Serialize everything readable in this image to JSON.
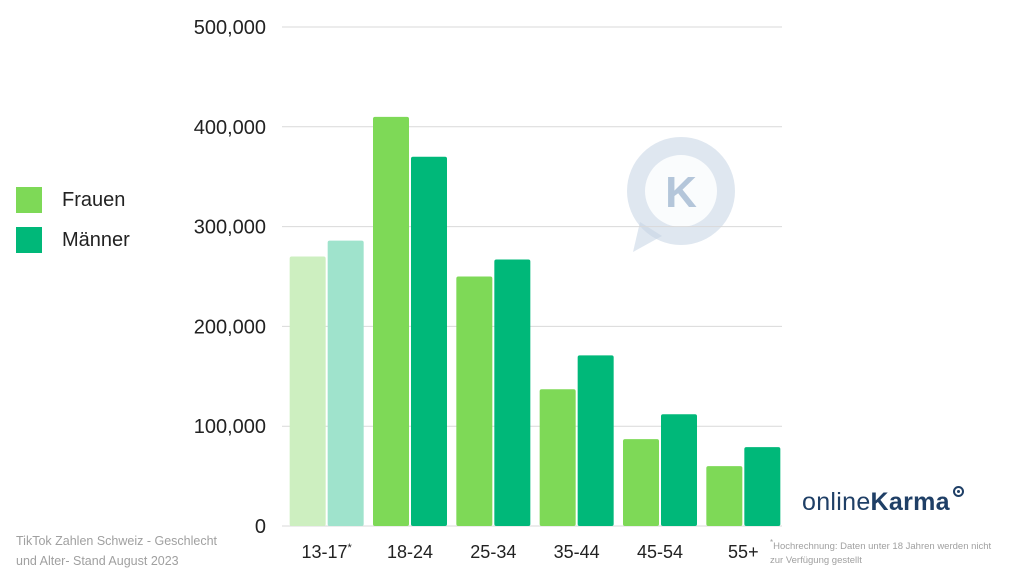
{
  "chart_data": {
    "type": "bar",
    "categories": [
      "13-17",
      "18-24",
      "25-34",
      "35-44",
      "45-54",
      "55+"
    ],
    "category_marks": [
      "*",
      "",
      "",
      "",
      "",
      ""
    ],
    "series": [
      {
        "name": "Frauen",
        "values": [
          270000,
          410000,
          250000,
          137000,
          87000,
          60000
        ]
      },
      {
        "name": "Männer",
        "values": [
          286000,
          370000,
          267000,
          171000,
          112000,
          79000
        ]
      }
    ],
    "estimated_category_index": 0,
    "ylim": [
      0,
      500000
    ],
    "yticks": [
      0,
      100000,
      200000,
      300000,
      400000,
      500000
    ],
    "ytick_labels": [
      "0",
      "100,000",
      "200,000",
      "300,000",
      "400,000",
      "500,000"
    ],
    "grid": true,
    "legend_position": "left"
  },
  "colors": {
    "frauen": "#7ed957",
    "maenner": "#00b879",
    "frauen_estimate": "#cdefc0",
    "maenner_estimate": "#9fe3cc",
    "grid": "#d9d9d9",
    "watermark": "#c5d3e3"
  },
  "legend": {
    "items": [
      {
        "label": "Frauen"
      },
      {
        "label": "Männer"
      }
    ]
  },
  "caption": {
    "line1": "TikTok Zahlen Schweiz - Geschlecht",
    "line2": "und Alter- Stand August 2023"
  },
  "footnote": {
    "mark": "*",
    "line1": "Hochrechnung: Daten unter 18 Jahren werden nicht",
    "line2": "zur Verfügung gestellt"
  },
  "brand": {
    "part1": "online",
    "part2": "Karma",
    "watermark_letter": "K"
  }
}
